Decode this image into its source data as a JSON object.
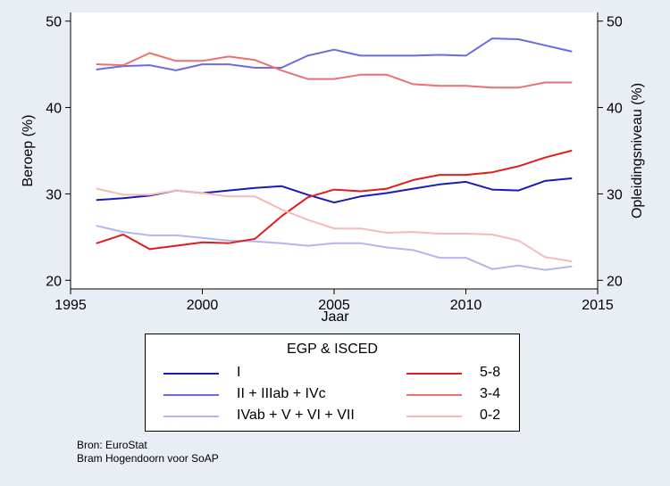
{
  "colors": {
    "background": "#e8eef3",
    "plot_background": "#ffffff",
    "I": "#1a1ab8",
    "II + IIIab + IVc": "#6b6be0",
    "IVab + V + VI + VII": "#b4b4f0",
    "5-8": "#e01c1c",
    "3-4": "#ee6f6f",
    "0-2": "#f7b8b8"
  },
  "chart_data": {
    "type": "line",
    "xlabel": "Jaar",
    "ylabel_left": "Beroep (%)",
    "ylabel_right": "Opleidingsniveau (%)",
    "xlim": [
      1995,
      2015
    ],
    "ylim": [
      19,
      51
    ],
    "x_ticks": [
      1995,
      2000,
      2005,
      2010,
      2015
    ],
    "y_ticks": [
      20,
      30,
      40,
      50
    ],
    "grid": false,
    "legend_position": "bottom",
    "x": [
      1996,
      1997,
      1998,
      1999,
      2000,
      2001,
      2002,
      2003,
      2004,
      2005,
      2006,
      2007,
      2008,
      2009,
      2010,
      2011,
      2012,
      2013,
      2014
    ],
    "series": [
      {
        "name": "I",
        "values": [
          29.3,
          29.5,
          29.8,
          30.4,
          30.1,
          30.4,
          30.7,
          30.9,
          29.9,
          29.0,
          29.7,
          30.1,
          30.6,
          31.1,
          31.4,
          30.5,
          30.4,
          31.5,
          31.8
        ]
      },
      {
        "name": "II + IIIab + IVc",
        "values": [
          44.4,
          44.8,
          44.9,
          44.3,
          45.0,
          45.0,
          44.6,
          44.6,
          46.0,
          46.7,
          46.0,
          46.0,
          46.0,
          46.1,
          46.0,
          48.0,
          47.9,
          47.2,
          46.5
        ]
      },
      {
        "name": "IVab + V + VI + VII",
        "values": [
          26.3,
          25.6,
          25.2,
          25.2,
          24.9,
          24.6,
          24.5,
          24.3,
          24.0,
          24.3,
          24.3,
          23.8,
          23.5,
          22.6,
          22.6,
          21.3,
          21.7,
          21.2,
          21.6
        ]
      },
      {
        "name": "5-8",
        "values": [
          24.3,
          25.3,
          23.6,
          24.0,
          24.4,
          24.3,
          24.8,
          27.4,
          29.6,
          30.5,
          30.3,
          30.6,
          31.6,
          32.2,
          32.2,
          32.5,
          33.2,
          34.2,
          35.0
        ]
      },
      {
        "name": "3-4",
        "values": [
          45.0,
          44.9,
          46.3,
          45.4,
          45.4,
          45.9,
          45.5,
          44.3,
          43.3,
          43.3,
          43.8,
          43.8,
          42.7,
          42.5,
          42.5,
          42.3,
          42.3,
          42.9,
          42.9
        ]
      },
      {
        "name": "0-2",
        "values": [
          30.6,
          29.9,
          29.9,
          30.4,
          30.1,
          29.7,
          29.7,
          28.2,
          27.0,
          26.0,
          26.0,
          25.5,
          25.6,
          25.4,
          25.4,
          25.3,
          24.6,
          22.7,
          22.2
        ]
      }
    ],
    "legend_title": "EGP & ISCED",
    "legend_order": [
      "I",
      "5-8",
      "II + IIIab + IVc",
      "3-4",
      "IVab + V + VI + VII",
      "0-2"
    ]
  },
  "source_lines": [
    "Bron: EuroStat",
    "Bram Hogendoorn voor SoAP"
  ]
}
